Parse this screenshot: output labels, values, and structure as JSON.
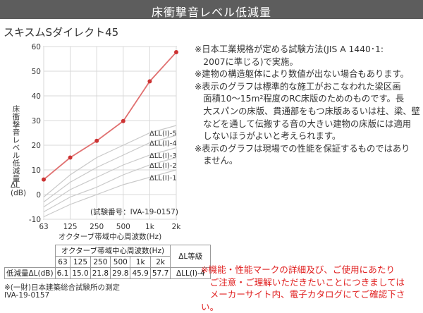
{
  "banner": {
    "title": "床衝撃音レベル低減量"
  },
  "product": {
    "name": "スキスムSダイレクト45"
  },
  "notes": [
    "※日本工業規格が定める試験方法(JIS A 1440･1:",
    "　2007に準じる)で実施。",
    "※建物の構造躯体により数値が出ない場合もあります。",
    "※表示のグラフは標準的な施工がおこなわれた梁区画",
    "　面積10～15m²程度のRC床版のためのものです。長",
    "　大スパンの床版、貫通部をもつ床版あるいは柱、梁、壁",
    "　などを通して伝搬する音の大きい建物の床版には適用",
    "　しないほうがよいと考えられます。",
    "※表示のグラフは現場での性能を保証するものではあり",
    "　ません。"
  ],
  "chart_data": {
    "type": "line",
    "ylabel": "床衝撃音レベル低減量",
    "ylabel_unit": [
      "ΔL",
      "(dB)"
    ],
    "xlabel": "オクターブ帯域中心周波数(Hz)",
    "x_ticks": [
      "63",
      "125",
      "250",
      "500",
      "1k",
      "2k"
    ],
    "y_ticks": [
      60,
      50,
      40,
      30,
      20,
      10,
      0,
      -10
    ],
    "ylim": [
      -10,
      60
    ],
    "grid": true,
    "test_number": "(試験番号：IVA-19-0157)",
    "series": [
      {
        "name": "",
        "color": "#e07070",
        "values": [
          6.1,
          15.0,
          21.8,
          29.8,
          45.9,
          57.7
        ]
      }
    ],
    "reference_curves": [
      {
        "label": "ΔLL(Ⅰ)-5",
        "values": [
          -1,
          8,
          15,
          20,
          25,
          28
        ]
      },
      {
        "label": "ΔLL(Ⅰ)-4",
        "values": [
          -3,
          5,
          11,
          16,
          21,
          24
        ]
      },
      {
        "label": "ΔLL(Ⅰ)-3",
        "values": [
          -5,
          2,
          7,
          12,
          16,
          19
        ]
      },
      {
        "label": "ΔLL(Ⅰ)-2",
        "values": [
          -7,
          -1,
          3,
          8,
          12,
          15
        ]
      },
      {
        "label": "ΔLL(Ⅰ)-1",
        "values": [
          -9,
          -4,
          0,
          4,
          7,
          10
        ]
      }
    ]
  },
  "table": {
    "header": "オクターブ帯域中心周波数(Hz)",
    "grade_header": "ΔL等級",
    "freqs": [
      "63",
      "125",
      "250",
      "500",
      "1k",
      "2k"
    ],
    "row_label": "低減量ΔL(dB)",
    "values": [
      "6.1",
      "15.0",
      "21.8",
      "29.8",
      "45.9",
      "57.7"
    ],
    "grade": "ΔLL(Ⅰ)-4"
  },
  "footer": {
    "source": "※(一財)日本建築総合試験所の測定",
    "test_id": "IVA-19-0157"
  },
  "warning": [
    "※機能・性能マークの詳細及び、ご使用にあたり",
    "　ご注意・ご理解いただきたいことにつきましては",
    "　メーカーサイト内、電子カタログにてご確認下さい。"
  ]
}
